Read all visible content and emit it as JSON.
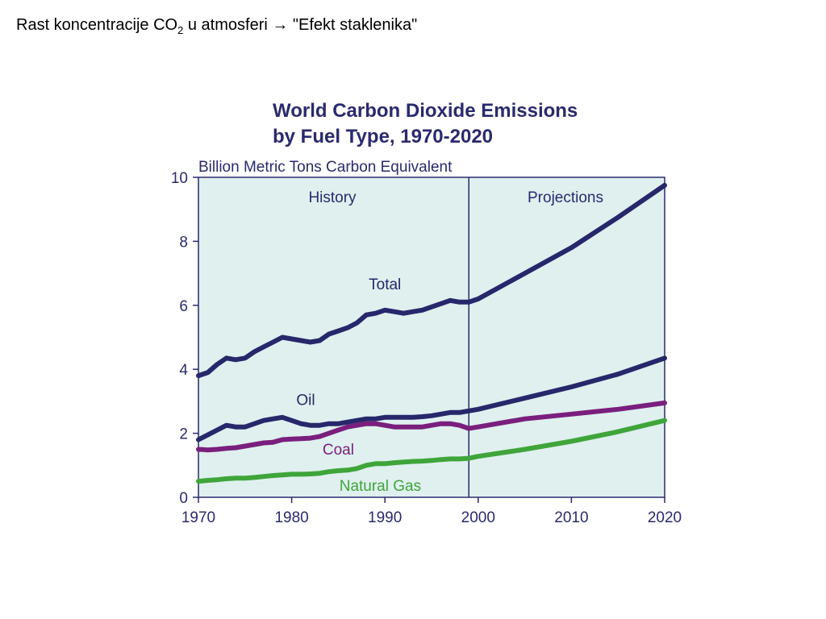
{
  "slide": {
    "heading_prefix": "Rast koncentracije CO",
    "heading_sub": "2",
    "heading_suffix": " u atmosferi",
    "arrow": "→",
    "heading_quote": " \"Efekt staklenika\""
  },
  "chart_data": {
    "type": "line",
    "title_line1": "World Carbon Dioxide Emissions",
    "title_line2": "by Fuel Type, 1970-2020",
    "ylabel": "Billion Metric Tons Carbon Equivalent",
    "xlim": [
      1970,
      2020
    ],
    "ylim": [
      0,
      10
    ],
    "x_ticks": [
      "1970",
      "1980",
      "1990",
      "2000",
      "2010",
      "2020"
    ],
    "y_ticks": [
      "0",
      "2",
      "4",
      "6",
      "8",
      "10"
    ],
    "grid": false,
    "divider_year": 1999,
    "regions": {
      "history": "History",
      "projections": "Projections"
    },
    "colors": {
      "plot_bg": "#dff0ef",
      "axis": "#2a2a6e",
      "divider": "#2a2a6e"
    },
    "series": [
      {
        "name": "Total",
        "color": "#27276b",
        "x": [
          1970,
          1971,
          1972,
          1973,
          1974,
          1975,
          1976,
          1977,
          1978,
          1979,
          1980,
          1981,
          1982,
          1983,
          1984,
          1985,
          1986,
          1987,
          1988,
          1989,
          1990,
          1991,
          1992,
          1993,
          1994,
          1995,
          1996,
          1997,
          1998,
          1999,
          2000,
          2005,
          2010,
          2015,
          2020
        ],
        "values": [
          3.8,
          3.9,
          4.15,
          4.35,
          4.3,
          4.35,
          4.55,
          4.7,
          4.85,
          5.0,
          4.95,
          4.9,
          4.85,
          4.9,
          5.1,
          5.2,
          5.3,
          5.45,
          5.7,
          5.75,
          5.85,
          5.8,
          5.75,
          5.8,
          5.85,
          5.95,
          6.05,
          6.15,
          6.1,
          6.1,
          6.2,
          7.0,
          7.8,
          8.75,
          9.75
        ]
      },
      {
        "name": "Oil",
        "color": "#27276b",
        "x": [
          1970,
          1971,
          1972,
          1973,
          1974,
          1975,
          1976,
          1977,
          1978,
          1979,
          1980,
          1981,
          1982,
          1983,
          1984,
          1985,
          1986,
          1987,
          1988,
          1989,
          1990,
          1991,
          1992,
          1993,
          1994,
          1995,
          1996,
          1997,
          1998,
          1999,
          2000,
          2005,
          2010,
          2015,
          2020
        ],
        "values": [
          1.8,
          1.95,
          2.1,
          2.25,
          2.2,
          2.2,
          2.3,
          2.4,
          2.45,
          2.5,
          2.4,
          2.3,
          2.25,
          2.25,
          2.3,
          2.3,
          2.35,
          2.4,
          2.45,
          2.45,
          2.5,
          2.5,
          2.5,
          2.5,
          2.52,
          2.55,
          2.6,
          2.65,
          2.65,
          2.7,
          2.75,
          3.1,
          3.45,
          3.85,
          4.35
        ]
      },
      {
        "name": "Coal",
        "color": "#7a1f7d",
        "x": [
          1970,
          1971,
          1972,
          1973,
          1974,
          1975,
          1976,
          1977,
          1978,
          1979,
          1980,
          1981,
          1982,
          1983,
          1984,
          1985,
          1986,
          1987,
          1988,
          1989,
          1990,
          1991,
          1992,
          1993,
          1994,
          1995,
          1996,
          1997,
          1998,
          1999,
          2000,
          2005,
          2010,
          2015,
          2020
        ],
        "values": [
          1.5,
          1.48,
          1.5,
          1.53,
          1.55,
          1.6,
          1.65,
          1.7,
          1.72,
          1.8,
          1.82,
          1.83,
          1.85,
          1.9,
          2.0,
          2.1,
          2.2,
          2.25,
          2.3,
          2.3,
          2.25,
          2.2,
          2.2,
          2.2,
          2.2,
          2.25,
          2.3,
          2.3,
          2.25,
          2.15,
          2.2,
          2.45,
          2.6,
          2.75,
          2.95
        ]
      },
      {
        "name": "Natural Gas",
        "color": "#3fa53a",
        "x": [
          1970,
          1971,
          1972,
          1973,
          1974,
          1975,
          1976,
          1977,
          1978,
          1979,
          1980,
          1981,
          1982,
          1983,
          1984,
          1985,
          1986,
          1987,
          1988,
          1989,
          1990,
          1991,
          1992,
          1993,
          1994,
          1995,
          1996,
          1997,
          1998,
          1999,
          2000,
          2005,
          2010,
          2015,
          2020
        ],
        "values": [
          0.5,
          0.53,
          0.55,
          0.58,
          0.6,
          0.6,
          0.62,
          0.65,
          0.68,
          0.7,
          0.72,
          0.72,
          0.73,
          0.75,
          0.8,
          0.83,
          0.85,
          0.9,
          1.0,
          1.05,
          1.05,
          1.08,
          1.1,
          1.12,
          1.13,
          1.15,
          1.18,
          1.2,
          1.2,
          1.22,
          1.28,
          1.5,
          1.75,
          2.05,
          2.4
        ]
      }
    ]
  }
}
